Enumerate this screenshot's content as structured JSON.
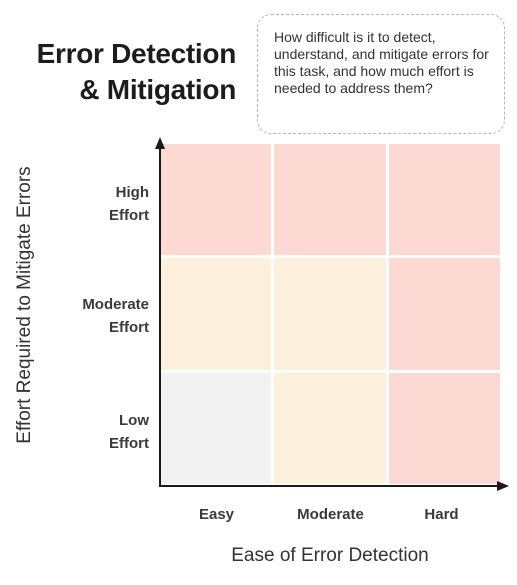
{
  "title": {
    "line1": "Error Detection",
    "line2": "& Mitigation"
  },
  "question": "How difficult is it to detect, understand, and mitigate errors for this task, and how much effort is needed to address them?",
  "y_axis": {
    "label": "Effort Required to Mitigate Errors",
    "rows": [
      {
        "line1": "High",
        "line2": "Effort"
      },
      {
        "line1": "Moderate",
        "line2": "Effort"
      },
      {
        "line1": "Low",
        "line2": "Effort"
      }
    ]
  },
  "x_axis": {
    "label": "Ease of Error Detection",
    "columns": [
      "Easy",
      "Moderate",
      "Hard"
    ]
  },
  "colors": {
    "high_risk": "#fcd9d2",
    "moderate_risk": "#fdf0dc",
    "low_risk": "#f2f2f2",
    "axis": "#1a1a1a"
  },
  "matrix": [
    [
      "high_risk",
      "high_risk",
      "high_risk"
    ],
    [
      "moderate_risk",
      "moderate_risk",
      "high_risk"
    ],
    [
      "low_risk",
      "moderate_risk",
      "high_risk"
    ]
  ]
}
